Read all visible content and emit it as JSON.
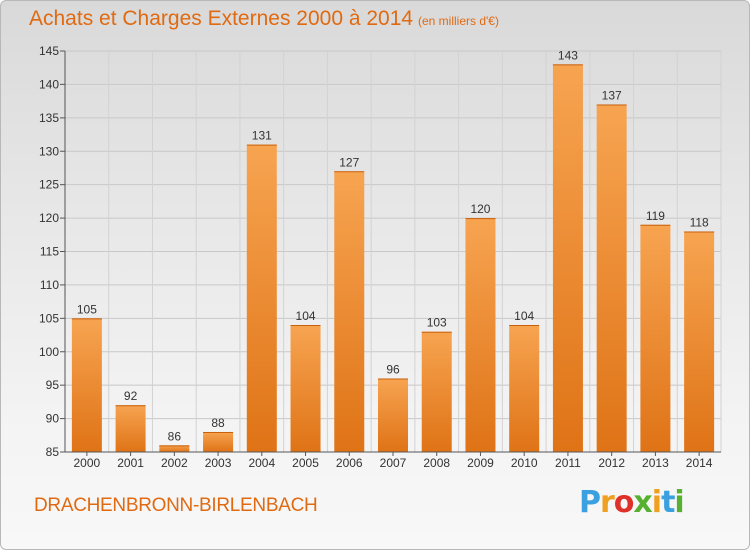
{
  "header": {
    "title": "Achats et Charges Externes 2000 à 2014",
    "unit": "(en milliers d'€)"
  },
  "footer": {
    "place": "DRACHENBRONN-BIRLENBACH",
    "logo_letters": [
      "P",
      "r",
      "o",
      "x",
      "i",
      "t",
      "i"
    ],
    "logo_colors": [
      "#3aa0e0",
      "#f0a020",
      "#e0302a",
      "#58b030",
      "#f0a020",
      "#3aa0e0",
      "#58b030"
    ]
  },
  "colors": {
    "bar_light": "#f7a451",
    "bar_dark": "#df7316",
    "text_accent": "#e06a12"
  },
  "chart_data": {
    "type": "bar",
    "title": "Achats et Charges Externes 2000 à 2014",
    "subtitle": "(en milliers d'€)",
    "xlabel": "",
    "ylabel": "",
    "categories": [
      "2000",
      "2001",
      "2002",
      "2003",
      "2004",
      "2005",
      "2006",
      "2007",
      "2008",
      "2009",
      "2010",
      "2011",
      "2012",
      "2013",
      "2014"
    ],
    "values": [
      105,
      92,
      86,
      88,
      131,
      104,
      127,
      96,
      103,
      120,
      104,
      143,
      137,
      119,
      118
    ],
    "ylim": [
      85,
      145
    ],
    "yticks": [
      85,
      90,
      95,
      100,
      105,
      110,
      115,
      120,
      125,
      130,
      135,
      140,
      145
    ],
    "grid": true,
    "legend": "none"
  }
}
